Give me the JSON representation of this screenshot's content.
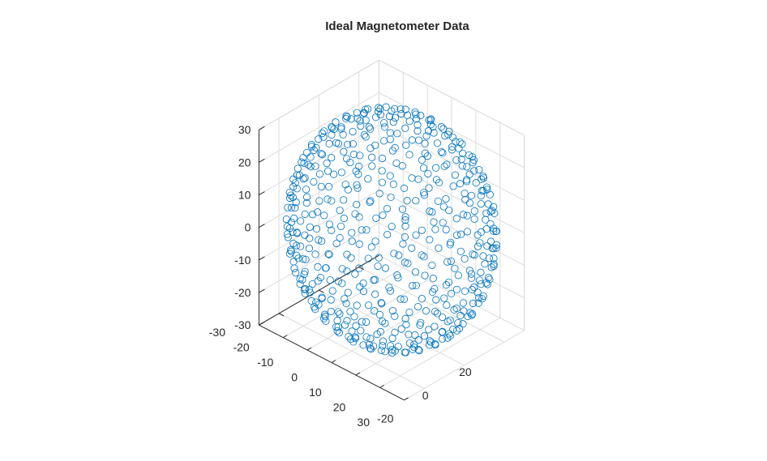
{
  "chart_data": {
    "type": "scatter",
    "projection": "3d",
    "title": "Ideal Magnetometer Data",
    "marker": "o",
    "marker_color": "#0072bd",
    "grid": true,
    "xlim": [
      -30,
      30
    ],
    "ylim": [
      -30,
      30
    ],
    "zlim": [
      -30,
      30
    ],
    "x_ticks": [
      -30,
      -20,
      -10,
      0,
      10,
      20,
      30
    ],
    "y_ticks": [
      -20,
      0,
      20
    ],
    "z_ticks": [
      -30,
      -20,
      -10,
      0,
      10,
      20,
      30
    ],
    "x_tick_labels": [
      "-30",
      "-20",
      "-10",
      "0",
      "10",
      "20",
      "30"
    ],
    "y_tick_labels": [
      "-20",
      "0",
      "20"
    ],
    "z_tick_labels": [
      "-30",
      "-20",
      "-10",
      "0",
      "10",
      "20",
      "30"
    ],
    "series": [
      {
        "description": "points on a sphere of radius ~33.5 centered at origin",
        "radius": 33.5,
        "center": [
          0,
          0,
          0
        ],
        "count": 550,
        "points": []
      }
    ]
  }
}
